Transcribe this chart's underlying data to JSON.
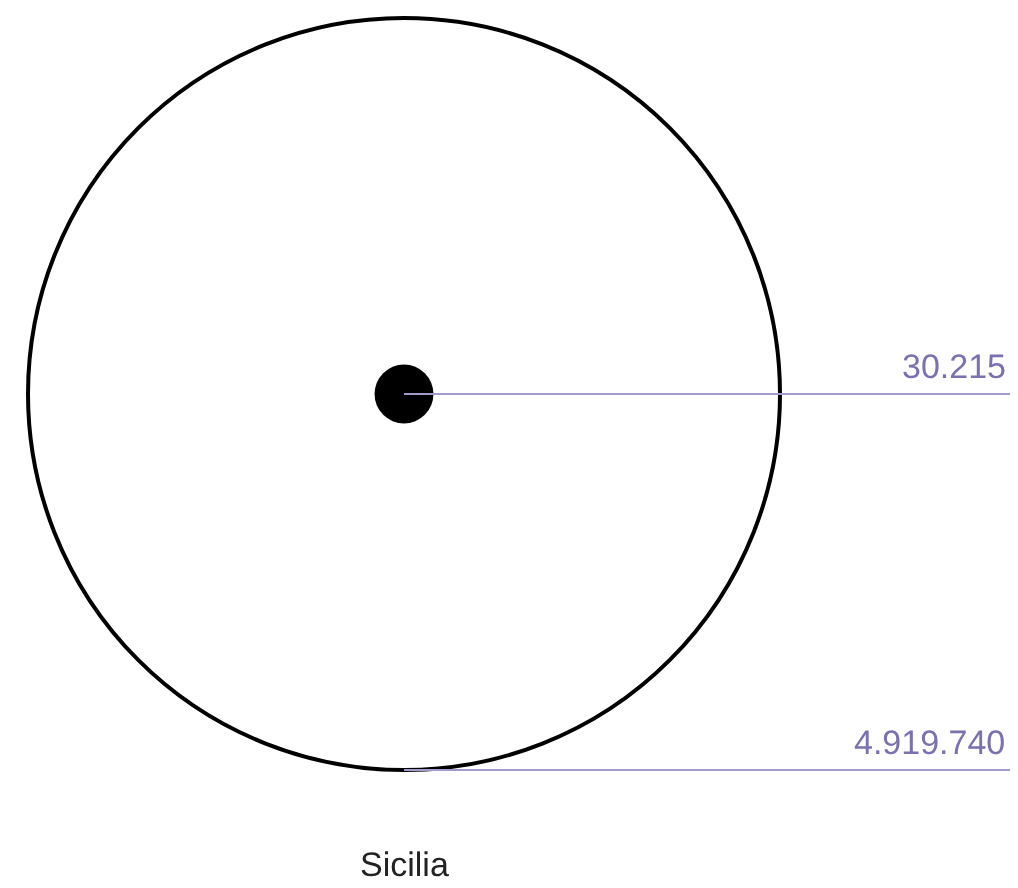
{
  "chart_data": {
    "type": "other",
    "categories": [
      "Sicilia"
    ],
    "series": [
      {
        "values": [
          4919740
        ],
        "value_labels": [
          "4.919.740"
        ],
        "color": "#000000"
      },
      {
        "values": [
          30215
        ],
        "value_labels": [
          "30.215"
        ],
        "color": "#000000"
      }
    ]
  }
}
